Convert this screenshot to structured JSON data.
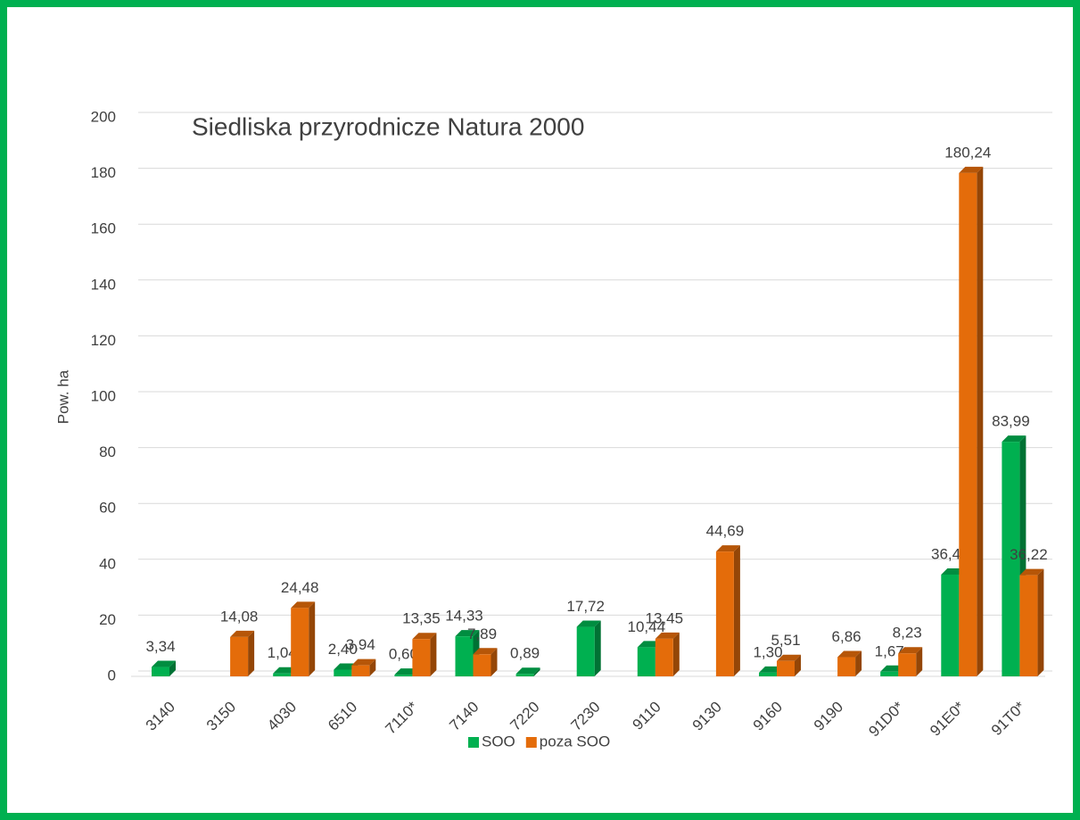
{
  "chart_data": {
    "type": "bar",
    "title": "Siedliska przyrodnicze Natura 2000",
    "y_label": "Pow. ha",
    "categories": [
      "3140",
      "3150",
      "4030",
      "6510",
      "7110*",
      "7140",
      "7220",
      "7230",
      "9110",
      "9130",
      "9160",
      "9190",
      "91D0*",
      "91E0*",
      "91T0*"
    ],
    "series": [
      {
        "name": "SOO",
        "color": "#00b050",
        "values": [
          3.34,
          null,
          1.04,
          2.4,
          0.6,
          14.33,
          0.89,
          17.72,
          10.44,
          null,
          1.3,
          null,
          1.67,
          36.44,
          83.99
        ],
        "value_labels": [
          "3,34",
          null,
          "1,04",
          "2,40",
          "0,60",
          "14,33",
          "0,89",
          "17,72",
          "10,44",
          null,
          "1,30",
          null,
          "1,67",
          "36,44",
          "83,99"
        ]
      },
      {
        "name": "poza SOO",
        "color": "#e46c0a",
        "values": [
          null,
          14.08,
          24.48,
          3.94,
          13.35,
          7.89,
          null,
          null,
          13.45,
          44.69,
          5.51,
          6.86,
          8.23,
          180.24,
          36.22
        ],
        "value_labels": [
          null,
          "14,08",
          "24,48",
          "3,94",
          "13,35",
          "7,89",
          null,
          null,
          "13,45",
          "44,69",
          "5,51",
          "6,86",
          "8,23",
          "180,24",
          "36,22"
        ]
      }
    ],
    "ylim": [
      0,
      200
    ],
    "yticks": [
      0,
      20,
      40,
      60,
      80,
      100,
      120,
      140,
      160,
      180,
      200
    ],
    "grid": true,
    "legend": "bottom"
  }
}
